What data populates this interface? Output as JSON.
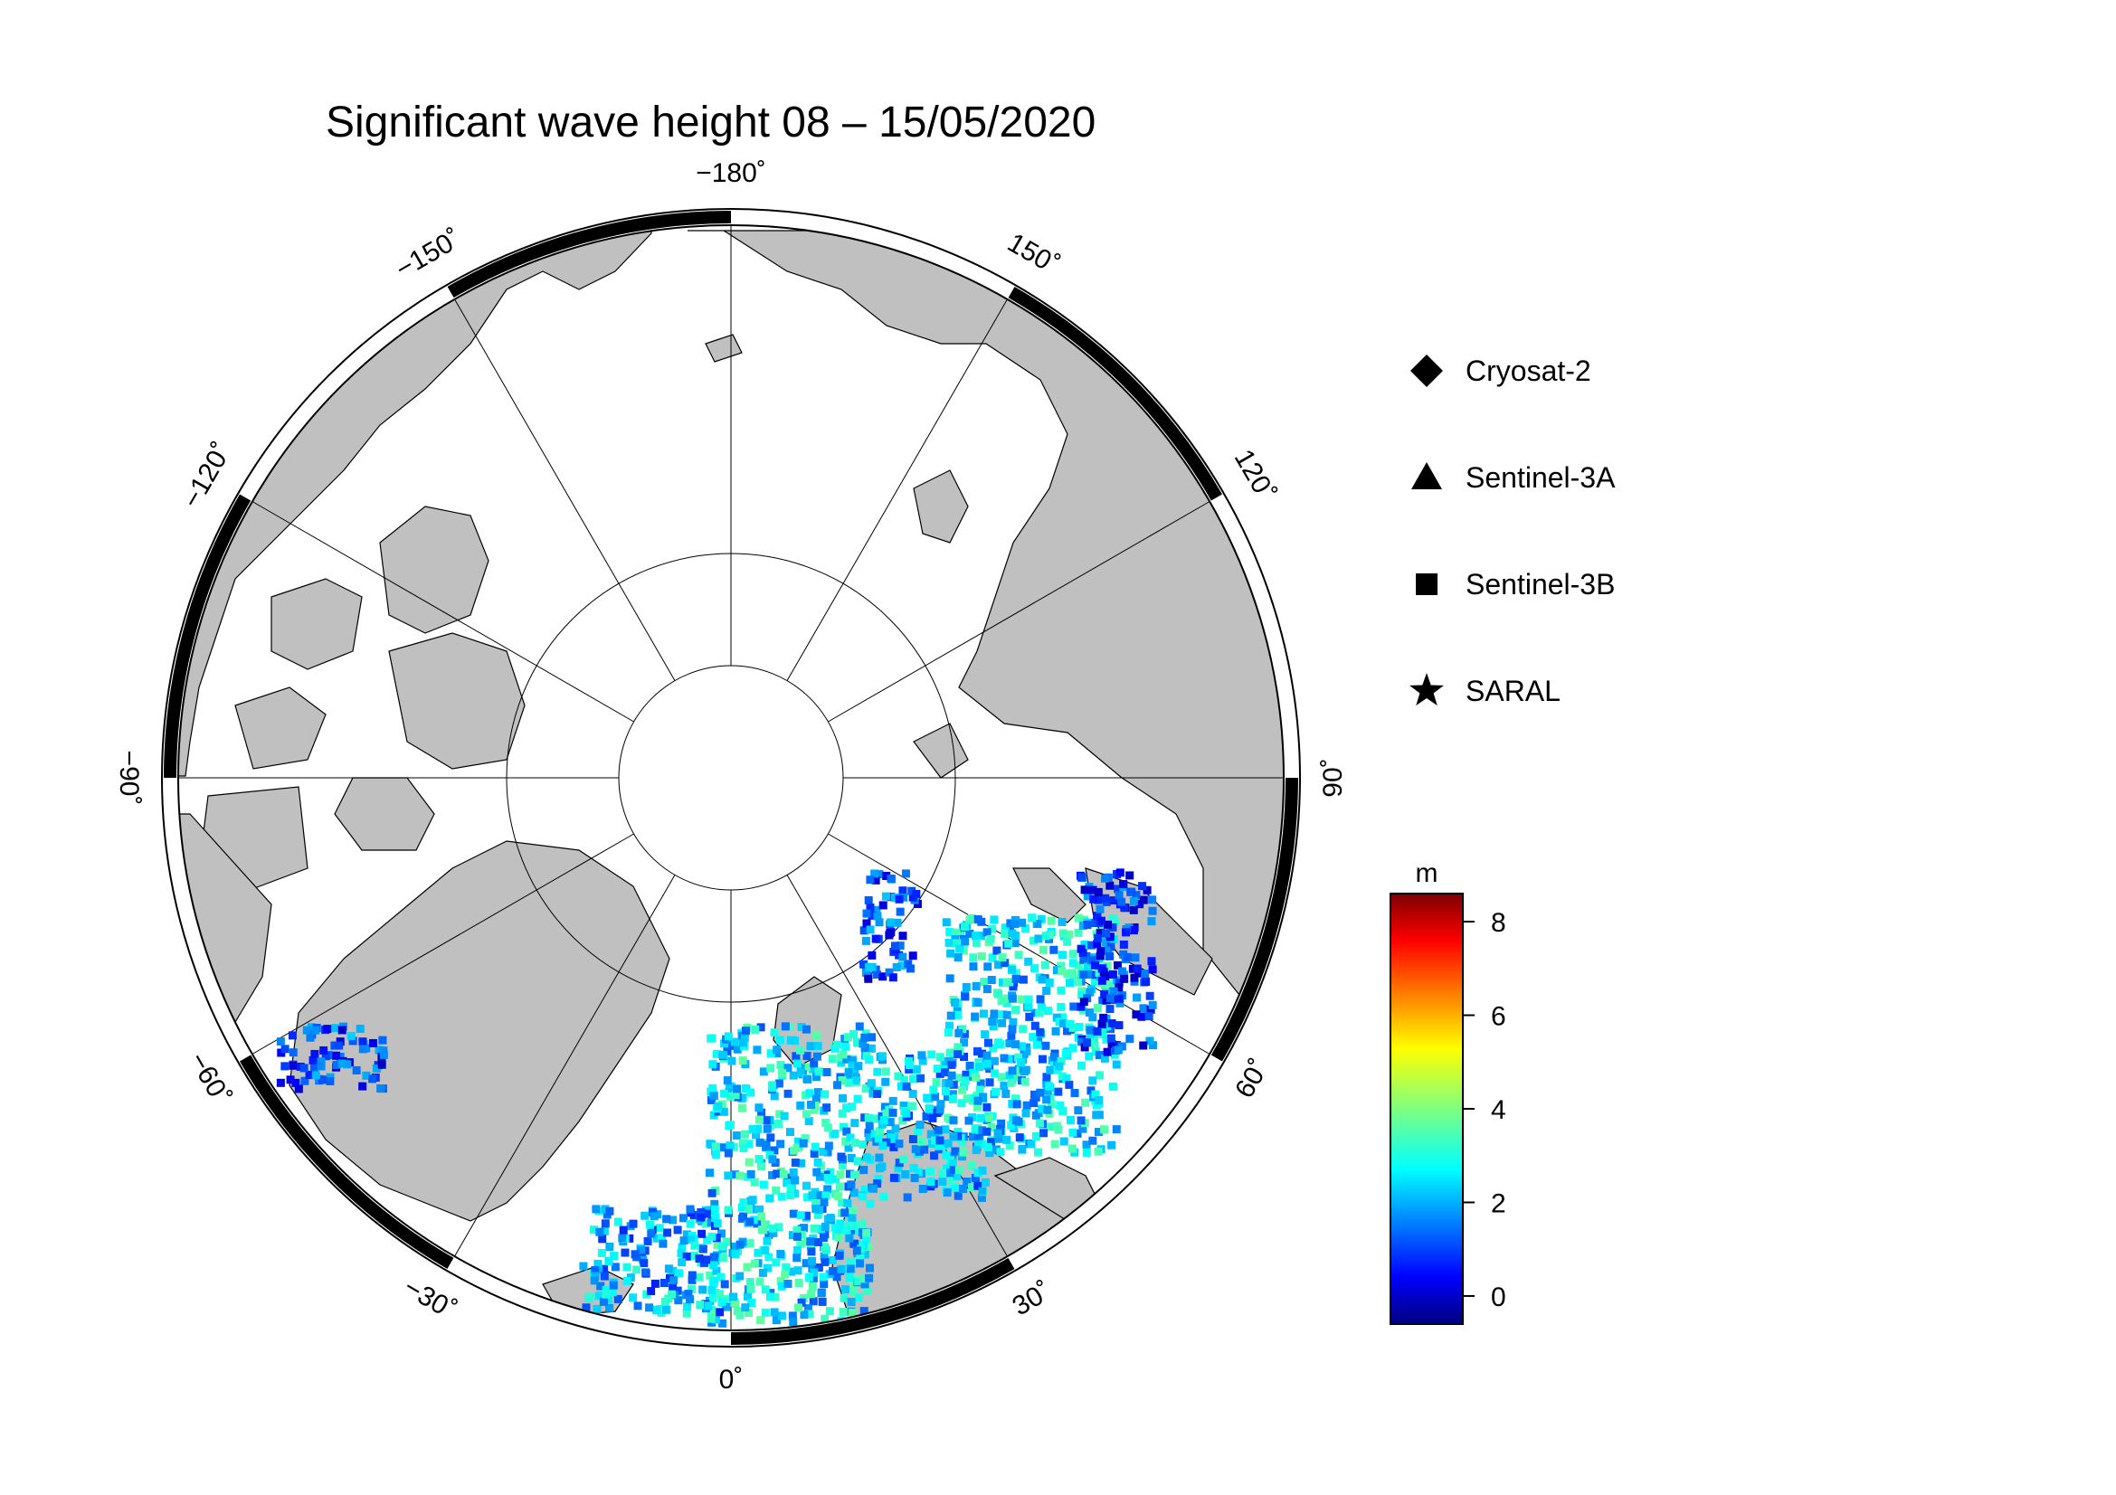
{
  "title": "Significant wave height 08 – 15/05/2020",
  "longitude_labels": [
    {
      "lon": -180,
      "text": "−180˚"
    },
    {
      "lon": 150,
      "text": "150˚"
    },
    {
      "lon": 120,
      "text": "120˚"
    },
    {
      "lon": 90,
      "text": "90˚"
    },
    {
      "lon": 60,
      "text": "60˚"
    },
    {
      "lon": 30,
      "text": "30˚"
    },
    {
      "lon": 0,
      "text": "0˚"
    },
    {
      "lon": -30,
      "text": "−30˚"
    },
    {
      "lon": -60,
      "text": "−60˚"
    },
    {
      "lon": -90,
      "text": "−90˚"
    },
    {
      "lon": -120,
      "text": "−120˚"
    },
    {
      "lon": -150,
      "text": "−150˚"
    }
  ],
  "legend": [
    {
      "name": "Cryosat-2",
      "symbol": "diamond"
    },
    {
      "name": "Sentinel-3A",
      "symbol": "triangle"
    },
    {
      "name": "Sentinel-3B",
      "symbol": "square"
    },
    {
      "name": "SARAL",
      "symbol": "star"
    }
  ],
  "colorbar": {
    "unit": "m",
    "min": -0.6,
    "max": 8.6,
    "ticks": [
      "0",
      "2",
      "4",
      "6",
      "8"
    ],
    "colormap": "jet"
  },
  "colors": {
    "land": "#c0c0c0",
    "ocean": "#ffffff",
    "frame_dark": "#000000"
  }
}
